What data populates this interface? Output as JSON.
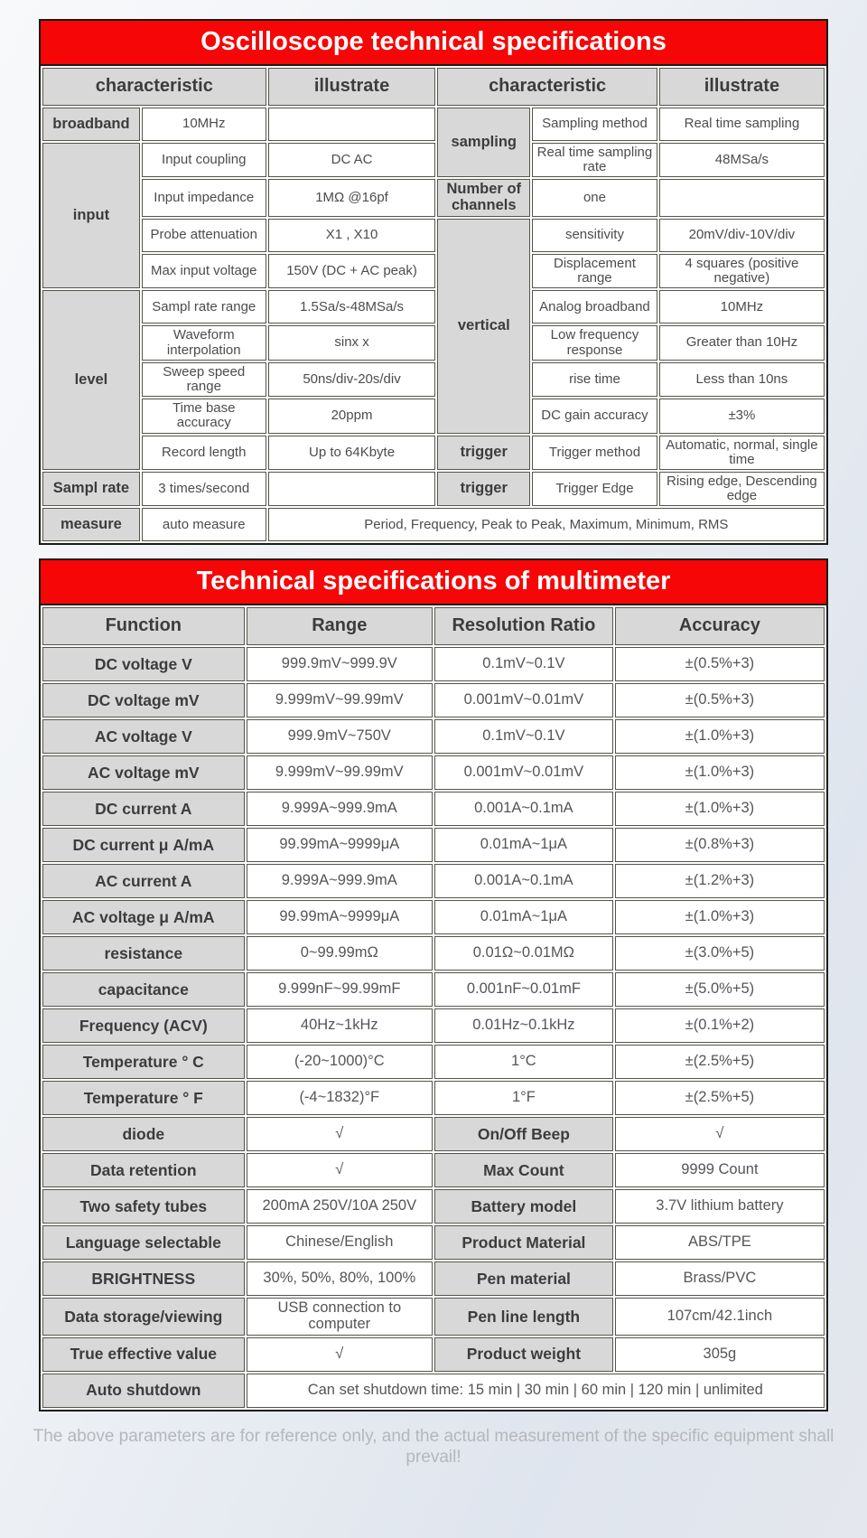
{
  "page": {
    "footer_note": "The above parameters are for reference only, and the actual measurement of the specific equipment shall prevail!"
  },
  "colors": {
    "banner_red": "#f60606",
    "header_gray": "#d8d8d8",
    "grid_border": "#55544b",
    "text_dark": "#3c3c3c",
    "footer_gray": "#b4b7bb"
  },
  "tables": [
    {
      "id": "oscilloscope",
      "title": "Oscilloscope technical specifications",
      "col_widths": [
        "12.6%",
        "16.1%",
        "21.7%",
        "12.0%",
        "16.2%",
        "21.4%"
      ],
      "header": [
        {
          "t": "characteristic",
          "cs": 2
        },
        {
          "t": "illustrate"
        },
        {
          "t": "characteristic",
          "cs": 2
        },
        {
          "t": "illustrate"
        }
      ],
      "rows": [
        [
          {
            "t": "broadband",
            "h": 1
          },
          {
            "t": "10MHz"
          },
          {
            "t": ""
          },
          {
            "t": "sampling",
            "h": 1,
            "rs": 2
          },
          {
            "t": "Sampling method"
          },
          {
            "t": "Real time sampling"
          }
        ],
        [
          {
            "t": "input",
            "h": 1,
            "rs": 4
          },
          {
            "t": "Input coupling"
          },
          {
            "t": "DC AC"
          },
          {
            "t": "Real time sampling rate"
          },
          {
            "t": "48MSa/s"
          }
        ],
        [
          {
            "t": "Input impedance"
          },
          {
            "t": "1MΩ @16pf"
          },
          {
            "t": "Number of channels",
            "h": 1
          },
          {
            "t": "one"
          },
          {
            "t": ""
          }
        ],
        [
          {
            "t": "Probe attenuation"
          },
          {
            "t": "X1 , X10"
          },
          {
            "t": "vertical",
            "h": 1,
            "rs": 6
          },
          {
            "t": "sensitivity"
          },
          {
            "t": "20mV/div-10V/div"
          }
        ],
        [
          {
            "t": "Max input voltage"
          },
          {
            "t": "150V (DC + AC peak)"
          },
          {
            "t": "Displacement range"
          },
          {
            "t": "4 squares (positive negative)"
          }
        ],
        [
          {
            "t": "level",
            "h": 1,
            "rs": 5
          },
          {
            "t": "Sampl rate range"
          },
          {
            "t": "1.5Sa/s-48MSa/s"
          },
          {
            "t": "Analog broadband"
          },
          {
            "t": "10MHz"
          }
        ],
        [
          {
            "t": "Waveform interpolation"
          },
          {
            "t": "sinx x"
          },
          {
            "t": "Low frequency response"
          },
          {
            "t": "Greater than 10Hz"
          }
        ],
        [
          {
            "t": "Sweep speed range"
          },
          {
            "t": "50ns/div-20s/div"
          },
          {
            "t": "rise time"
          },
          {
            "t": "Less than 10ns"
          }
        ],
        [
          {
            "t": "Time base accuracy"
          },
          {
            "t": "20ppm"
          },
          {
            "t": "DC gain accuracy"
          },
          {
            "t": "±3%"
          }
        ],
        [
          {
            "t": "Record length"
          },
          {
            "t": "Up to 64Kbyte"
          },
          {
            "t": "trigger",
            "h": 1
          },
          {
            "t": "Trigger method"
          },
          {
            "t": "Automatic, normal, single time"
          }
        ],
        [
          {
            "t": "Sampl rate",
            "h": 1
          },
          {
            "t": "3 times/second"
          },
          {
            "t": ""
          },
          {
            "t": "trigger",
            "h": 1
          },
          {
            "t": "Trigger Edge"
          },
          {
            "t": "Rising edge, Descending edge"
          }
        ],
        [
          {
            "t": "measure",
            "h": 1
          },
          {
            "t": "auto measure"
          },
          {
            "t": "Period, Frequency, Peak to Peak, Maximum, Minimum, RMS",
            "cs": 4
          }
        ]
      ]
    },
    {
      "id": "multimeter",
      "title": "Technical specifications of multimeter",
      "col_widths": [
        "26%",
        "24%",
        "23%",
        "27%"
      ],
      "header": [
        {
          "t": "Function"
        },
        {
          "t": "Range"
        },
        {
          "t": "Resolution Ratio"
        },
        {
          "t": "Accuracy"
        }
      ],
      "rows": [
        [
          {
            "t": "DC voltage V",
            "h": 1
          },
          {
            "t": "999.9mV~999.9V"
          },
          {
            "t": "0.1mV~0.1V"
          },
          {
            "t": "±(0.5%+3)"
          }
        ],
        [
          {
            "t": "DC voltage mV",
            "h": 1
          },
          {
            "t": "9.999mV~99.99mV"
          },
          {
            "t": "0.001mV~0.01mV"
          },
          {
            "t": "±(0.5%+3)"
          }
        ],
        [
          {
            "t": "AC voltage V",
            "h": 1
          },
          {
            "t": "999.9mV~750V"
          },
          {
            "t": "0.1mV~0.1V"
          },
          {
            "t": "±(1.0%+3)"
          }
        ],
        [
          {
            "t": "AC voltage mV",
            "h": 1
          },
          {
            "t": "9.999mV~99.99mV"
          },
          {
            "t": "0.001mV~0.01mV"
          },
          {
            "t": "±(1.0%+3)"
          }
        ],
        [
          {
            "t": "DC current A",
            "h": 1
          },
          {
            "t": "9.999A~999.9mA"
          },
          {
            "t": "0.001A~0.1mA"
          },
          {
            "t": "±(1.0%+3)"
          }
        ],
        [
          {
            "t": "DC current μ A/mA",
            "h": 1
          },
          {
            "t": "99.99mA~9999μA"
          },
          {
            "t": "0.01mA~1μA"
          },
          {
            "t": "±(0.8%+3)"
          }
        ],
        [
          {
            "t": "AC current A",
            "h": 1
          },
          {
            "t": "9.999A~999.9mA"
          },
          {
            "t": "0.001A~0.1mA"
          },
          {
            "t": "±(1.2%+3)"
          }
        ],
        [
          {
            "t": "AC voltage μ A/mA",
            "h": 1
          },
          {
            "t": "99.99mA~9999μA"
          },
          {
            "t": "0.01mA~1μA"
          },
          {
            "t": "±(1.0%+3)"
          }
        ],
        [
          {
            "t": "resistance",
            "h": 1
          },
          {
            "t": "0~99.99mΩ"
          },
          {
            "t": "0.01Ω~0.01MΩ"
          },
          {
            "t": "±(3.0%+5)"
          }
        ],
        [
          {
            "t": "capacitance",
            "h": 1
          },
          {
            "t": "9.999nF~99.99mF"
          },
          {
            "t": "0.001nF~0.01mF"
          },
          {
            "t": "±(5.0%+5)"
          }
        ],
        [
          {
            "t": "Frequency (ACV)",
            "h": 1
          },
          {
            "t": "40Hz~1kHz"
          },
          {
            "t": "0.01Hz~0.1kHz"
          },
          {
            "t": "±(0.1%+2)"
          }
        ],
        [
          {
            "t": "Temperature ° C",
            "h": 1
          },
          {
            "t": "(-20~1000)°C"
          },
          {
            "t": "1°C"
          },
          {
            "t": "±(2.5%+5)"
          }
        ],
        [
          {
            "t": "Temperature ° F",
            "h": 1
          },
          {
            "t": "(-4~1832)°F"
          },
          {
            "t": "1°F"
          },
          {
            "t": "±(2.5%+5)"
          }
        ],
        [
          {
            "t": "diode",
            "h": 1
          },
          {
            "t": "√"
          },
          {
            "t": "On/Off Beep",
            "h": 1
          },
          {
            "t": "√"
          }
        ],
        [
          {
            "t": "Data retention",
            "h": 1
          },
          {
            "t": "√"
          },
          {
            "t": "Max Count",
            "h": 1
          },
          {
            "t": "9999 Count"
          }
        ],
        [
          {
            "t": "Two safety tubes",
            "h": 1
          },
          {
            "t": "200mA 250V/10A 250V"
          },
          {
            "t": "Battery model",
            "h": 1
          },
          {
            "t": "3.7V lithium battery"
          }
        ],
        [
          {
            "t": "Language selectable",
            "h": 1
          },
          {
            "t": "Chinese/English"
          },
          {
            "t": "Product Material",
            "h": 1
          },
          {
            "t": "ABS/TPE"
          }
        ],
        [
          {
            "t": "BRIGHTNESS",
            "h": 1
          },
          {
            "t": "30%, 50%, 80%, 100%"
          },
          {
            "t": "Pen material",
            "h": 1
          },
          {
            "t": "Brass/PVC"
          }
        ],
        [
          {
            "t": "Data storage/viewing",
            "h": 1
          },
          {
            "t": "USB connection to computer"
          },
          {
            "t": "Pen line length",
            "h": 1
          },
          {
            "t": "107cm/42.1inch"
          }
        ],
        [
          {
            "t": "True effective value",
            "h": 1
          },
          {
            "t": "√"
          },
          {
            "t": "Product weight",
            "h": 1
          },
          {
            "t": "305g"
          }
        ],
        [
          {
            "t": "Auto shutdown",
            "h": 1
          },
          {
            "t": "Can set shutdown time: 15 min | 30 min | 60 min | 120 min | unlimited",
            "cs": 3
          }
        ]
      ]
    }
  ]
}
